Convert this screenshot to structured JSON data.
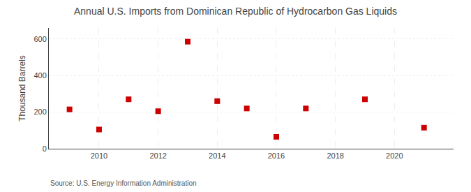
{
  "chart_data": {
    "type": "scatter",
    "title": "Annual U.S. Imports from Dominican Republic of Hydrocarbon Gas Liquids",
    "ylabel": "Thousand Barrels",
    "annotations": [
      "Source: U.S. Energy Information Administration"
    ],
    "x": [
      2009,
      2010,
      2011,
      2012,
      2013,
      2014,
      2015,
      2016,
      2017,
      2019,
      2021
    ],
    "values": [
      215,
      105,
      270,
      205,
      585,
      260,
      220,
      65,
      220,
      270,
      115
    ],
    "color": "#cc0000",
    "marker": "square",
    "xlim": [
      2008.3,
      2022.0
    ],
    "ylim": [
      0,
      660
    ],
    "xticks": [
      2010,
      2012,
      2014,
      2016,
      2018,
      2020
    ],
    "yticks": [
      0,
      200,
      400,
      600
    ],
    "grid": true
  }
}
